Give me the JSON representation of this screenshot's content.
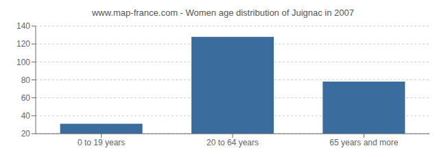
{
  "chart_data": {
    "type": "bar",
    "title": "www.map-france.com - Women age distribution of Juignac in 2007",
    "categories": [
      "0 to 19 years",
      "20 to 64 years",
      "65 years and more"
    ],
    "values": [
      31,
      128,
      78
    ],
    "color": "#3a6d9e",
    "ylim": [
      20,
      140
    ],
    "yticks": [
      20,
      40,
      60,
      80,
      100,
      120,
      140
    ],
    "grid": true
  }
}
